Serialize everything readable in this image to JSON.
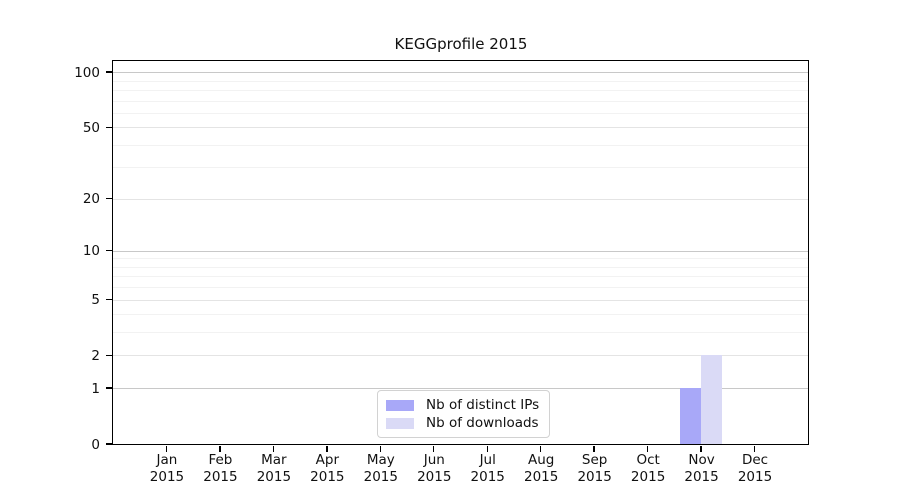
{
  "chart_data": {
    "type": "bar",
    "title": "KEGGprofile 2015",
    "categories": [
      "Jan",
      "Feb",
      "Mar",
      "Apr",
      "May",
      "Jun",
      "Jul",
      "Aug",
      "Sep",
      "Oct",
      "Nov",
      "Dec"
    ],
    "year_label": "2015",
    "series": [
      {
        "name": "Nb of distinct IPs",
        "color": "#a8a8f8",
        "values": [
          0,
          0,
          0,
          0,
          0,
          0,
          0,
          0,
          0,
          0,
          1,
          0
        ]
      },
      {
        "name": "Nb of downloads",
        "color": "#dadaf6",
        "values": [
          0,
          0,
          0,
          0,
          0,
          0,
          0,
          0,
          0,
          0,
          2,
          0
        ]
      }
    ],
    "y_scale": "log1p",
    "ylim": [
      0,
      115
    ],
    "y_major_ticks": [
      0,
      1,
      2,
      5,
      10,
      20,
      50,
      100
    ],
    "y_emphasis_gridlines": [
      1,
      10,
      100
    ],
    "y_minor_gridlines": [
      3,
      4,
      6,
      7,
      8,
      9,
      30,
      40,
      60,
      70,
      80,
      90
    ],
    "grid": "horizontal",
    "legend_position": "bottom-center",
    "xlabel": "",
    "ylabel": ""
  },
  "style_colors": {
    "axis": "#000000",
    "gridline_emphasis": "#c8c8c8",
    "gridline_major": "#e4e4e4",
    "gridline_minor": "#f2f2f2",
    "legend_border": "#d2d2d2",
    "background": "#ffffff"
  }
}
